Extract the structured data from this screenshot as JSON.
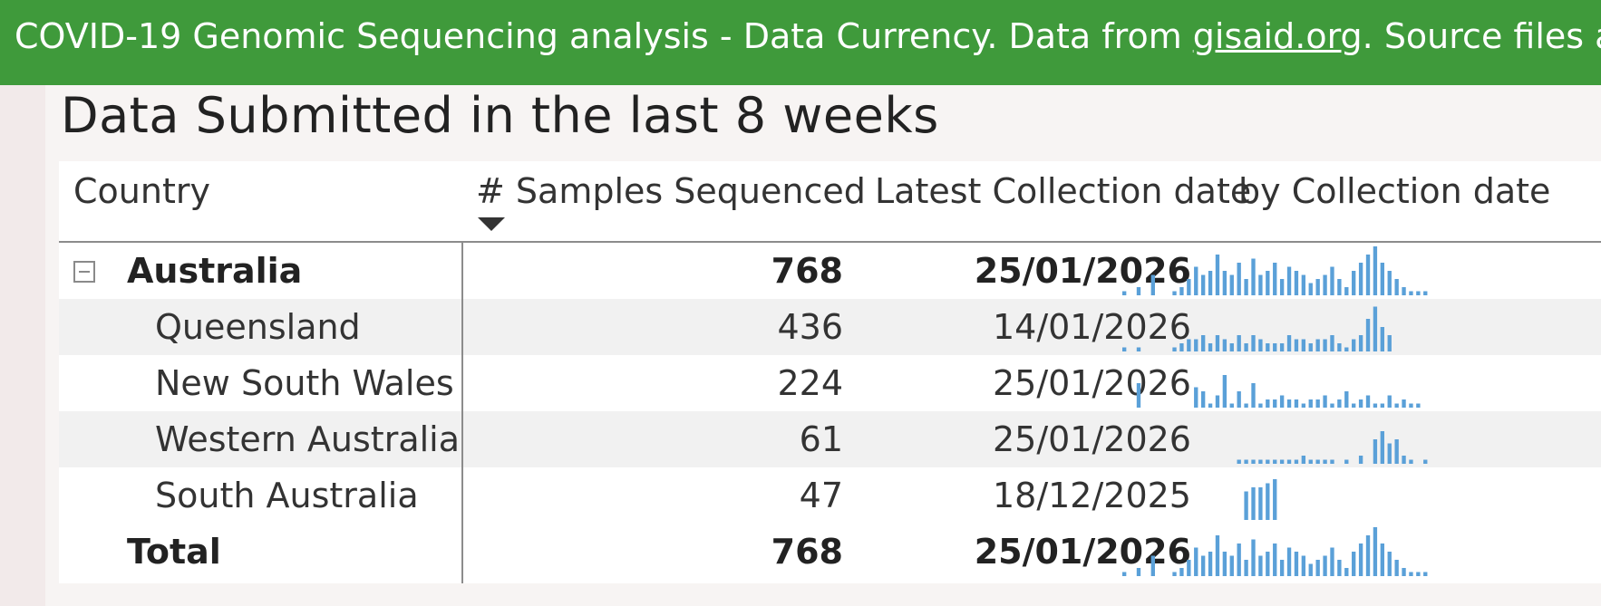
{
  "banner": {
    "text_before": "COVID-19 Genomic Sequencing analysis - Data Currency. Data from ",
    "link": "gisaid.org",
    "text_after": ". Source files and",
    "background": "#3f9a3b"
  },
  "title": "Data Submitted in the last 8 weeks",
  "table": {
    "headers": {
      "country": "Country",
      "samples": "# Samples Sequenced",
      "latest": "Latest Collection date",
      "by_date": "by Collection date"
    },
    "sort_indicator": "sort-descending-icon",
    "rows": [
      {
        "country": "Australia",
        "samples": "768",
        "latest": "25/01/2026",
        "level": "parent",
        "expanded": true
      },
      {
        "country": "Queensland",
        "samples": "436",
        "latest": "14/01/2026",
        "level": "child"
      },
      {
        "country": "New South Wales",
        "samples": "224",
        "latest": "25/01/2026",
        "level": "child"
      },
      {
        "country": "Western Australia",
        "samples": "61",
        "latest": "25/01/2026",
        "level": "child"
      },
      {
        "country": "South Australia",
        "samples": "47",
        "latest": "18/12/2025",
        "level": "child"
      }
    ],
    "total": {
      "label": "Total",
      "samples": "768",
      "latest": "25/01/2026"
    }
  },
  "sparklines": {
    "color": "#5aa0d8",
    "series": [
      [
        1,
        0,
        2,
        0,
        5,
        0,
        0,
        1,
        2,
        4,
        7,
        5,
        6,
        10,
        6,
        5,
        8,
        4,
        9,
        5,
        6,
        8,
        4,
        7,
        6,
        5,
        3,
        4,
        5,
        7,
        4,
        2,
        6,
        8,
        10,
        12,
        8,
        6,
        4,
        2,
        1,
        1,
        1
      ],
      [
        1,
        0,
        1,
        0,
        0,
        0,
        0,
        1,
        2,
        3,
        3,
        4,
        2,
        4,
        3,
        2,
        4,
        2,
        4,
        3,
        2,
        2,
        2,
        4,
        3,
        3,
        2,
        3,
        3,
        4,
        2,
        1,
        3,
        4,
        8,
        11,
        6,
        4,
        0,
        0,
        0,
        0,
        0
      ],
      [
        0,
        0,
        6,
        0,
        0,
        0,
        0,
        0,
        0,
        0,
        5,
        4,
        1,
        3,
        8,
        1,
        4,
        1,
        6,
        1,
        2,
        2,
        3,
        2,
        2,
        1,
        2,
        2,
        3,
        1,
        2,
        4,
        1,
        2,
        3,
        1,
        1,
        3,
        1,
        2,
        1,
        1,
        0
      ],
      [
        0,
        0,
        0,
        0,
        0,
        0,
        0,
        0,
        0,
        0,
        0,
        0,
        0,
        0,
        0,
        0,
        1,
        1,
        1,
        1,
        1,
        1,
        1,
        1,
        1,
        2,
        1,
        1,
        1,
        1,
        0,
        1,
        0,
        2,
        0,
        6,
        8,
        5,
        6,
        2,
        1,
        0,
        1
      ],
      [
        0,
        0,
        0,
        0,
        0,
        0,
        0,
        0,
        0,
        0,
        0,
        0,
        0,
        0,
        0,
        0,
        0,
        7,
        8,
        8,
        9,
        10,
        0,
        0,
        0,
        0,
        0,
        0,
        0,
        0,
        0,
        0,
        0,
        0,
        0,
        0,
        0,
        0,
        0,
        0,
        0,
        0,
        0
      ],
      [
        1,
        0,
        2,
        0,
        5,
        0,
        0,
        1,
        2,
        4,
        7,
        5,
        6,
        10,
        6,
        5,
        8,
        4,
        9,
        5,
        6,
        8,
        4,
        7,
        6,
        5,
        3,
        4,
        5,
        7,
        4,
        2,
        6,
        8,
        10,
        12,
        8,
        6,
        4,
        2,
        1,
        1,
        1
      ]
    ]
  }
}
